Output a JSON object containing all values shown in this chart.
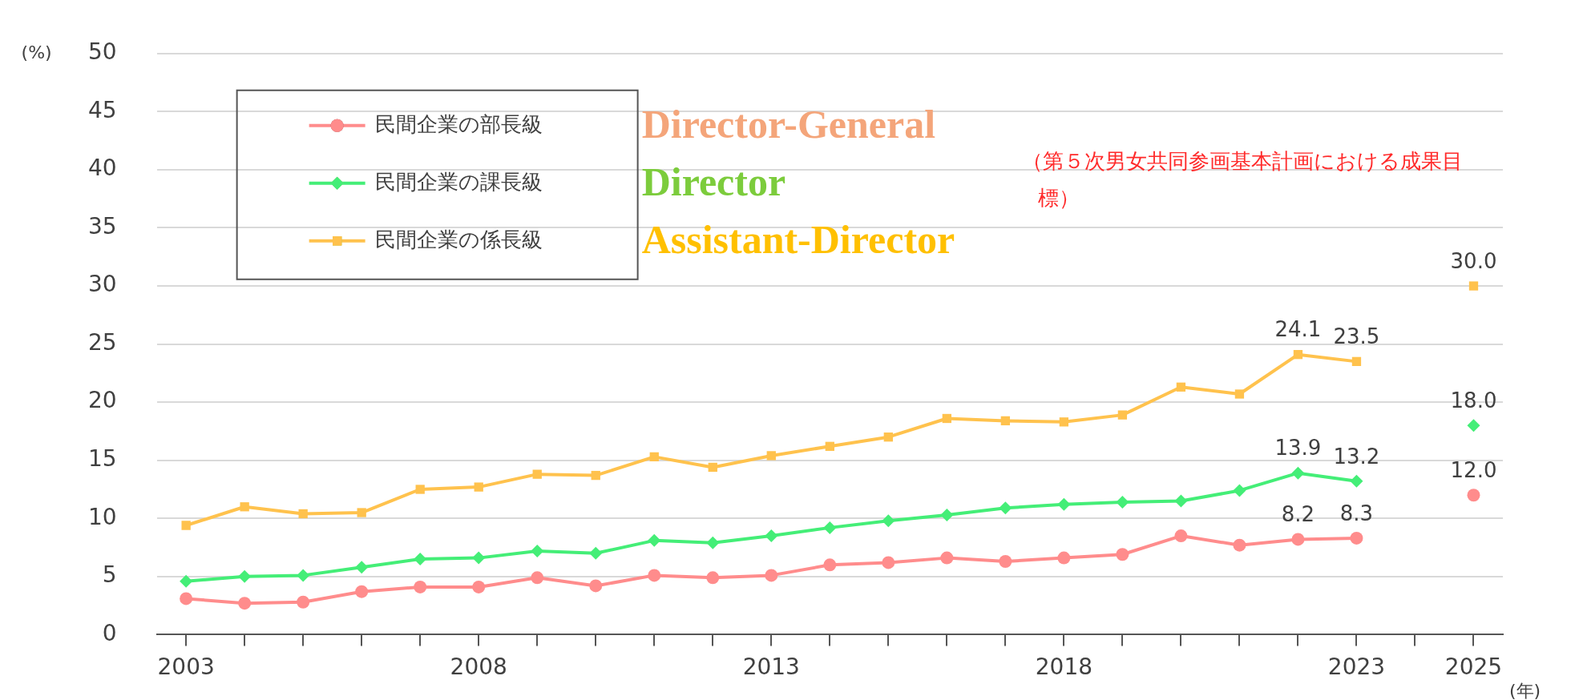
{
  "chart_data": {
    "type": "line",
    "ylabel": "(%)",
    "xlabel": "(年)",
    "x": [
      2003,
      2004,
      2005,
      2006,
      2007,
      2008,
      2009,
      2010,
      2011,
      2012,
      2013,
      2014,
      2015,
      2016,
      2017,
      2018,
      2019,
      2020,
      2021,
      2022,
      2023,
      2024,
      2025
    ],
    "xlim": [
      2002.5,
      2025.5
    ],
    "xticks": [
      2003,
      {
        "value": 2004,
        "label": null
      },
      {
        "value": 2005,
        "label": null
      },
      {
        "value": 2006,
        "label": null
      },
      {
        "value": 2007,
        "label": null
      },
      2008,
      {
        "value": 2009,
        "label": null
      },
      {
        "value": 2010,
        "label": null
      },
      {
        "value": 2011,
        "label": null
      },
      {
        "value": 2012,
        "label": null
      },
      2013,
      {
        "value": 2014,
        "label": null
      },
      {
        "value": 2015,
        "label": null
      },
      {
        "value": 2016,
        "label": null
      },
      {
        "value": 2017,
        "label": null
      },
      2018,
      {
        "value": 2019,
        "label": null
      },
      {
        "value": 2020,
        "label": null
      },
      {
        "value": 2021,
        "label": null
      },
      {
        "value": 2022,
        "label": null
      },
      2023,
      {
        "value": 2024,
        "label": null
      },
      2025
    ],
    "ylim": [
      0,
      50
    ],
    "yticks": [
      0,
      5,
      10,
      15,
      20,
      25,
      30,
      35,
      40,
      45,
      50
    ],
    "grid": "y",
    "legend": "top left",
    "series": [
      {
        "name": "民間企業の部長級",
        "color": "#ff8c8c",
        "marker": "circle",
        "values": [
          3.1,
          2.7,
          2.8,
          3.7,
          4.1,
          4.1,
          4.9,
          4.2,
          5.1,
          4.9,
          5.1,
          6.0,
          6.2,
          6.6,
          6.3,
          6.6,
          6.9,
          8.5,
          7.7,
          8.2,
          8.3,
          null,
          12.0
        ],
        "value_labels": [
          null,
          null,
          null,
          null,
          null,
          null,
          null,
          null,
          null,
          null,
          null,
          null,
          null,
          null,
          null,
          null,
          null,
          null,
          null,
          "8.2",
          "8.3",
          null,
          "12.0"
        ]
      },
      {
        "name": "民間企業の課長級",
        "color": "#44ee77",
        "marker": "diamond",
        "values": [
          4.6,
          5.0,
          5.1,
          5.8,
          6.5,
          6.6,
          7.2,
          7.0,
          8.1,
          7.9,
          8.5,
          9.2,
          9.8,
          10.3,
          10.9,
          11.2,
          11.4,
          11.5,
          12.4,
          13.9,
          13.2,
          null,
          18.0
        ],
        "value_labels": [
          null,
          null,
          null,
          null,
          null,
          null,
          null,
          null,
          null,
          null,
          null,
          null,
          null,
          null,
          null,
          null,
          null,
          null,
          null,
          "13.9",
          "13.2",
          null,
          "18.0"
        ]
      },
      {
        "name": "民間企業の係長級",
        "color": "#ffc24d",
        "marker": "square",
        "values": [
          9.4,
          11.0,
          10.4,
          10.5,
          12.5,
          12.7,
          13.8,
          13.7,
          15.3,
          14.4,
          15.4,
          16.2,
          17.0,
          18.6,
          18.4,
          18.3,
          18.9,
          21.3,
          20.7,
          24.1,
          23.5,
          null,
          30.0
        ],
        "value_labels": [
          null,
          null,
          null,
          null,
          null,
          null,
          null,
          null,
          null,
          null,
          null,
          null,
          null,
          null,
          null,
          null,
          null,
          null,
          null,
          "24.1",
          "23.5",
          null,
          "30.0"
        ]
      }
    ],
    "annotations": [
      "Director-General",
      "Director",
      "Assistant-Director",
      "（第５次男女共同参画基本計画における成果目標）"
    ]
  }
}
